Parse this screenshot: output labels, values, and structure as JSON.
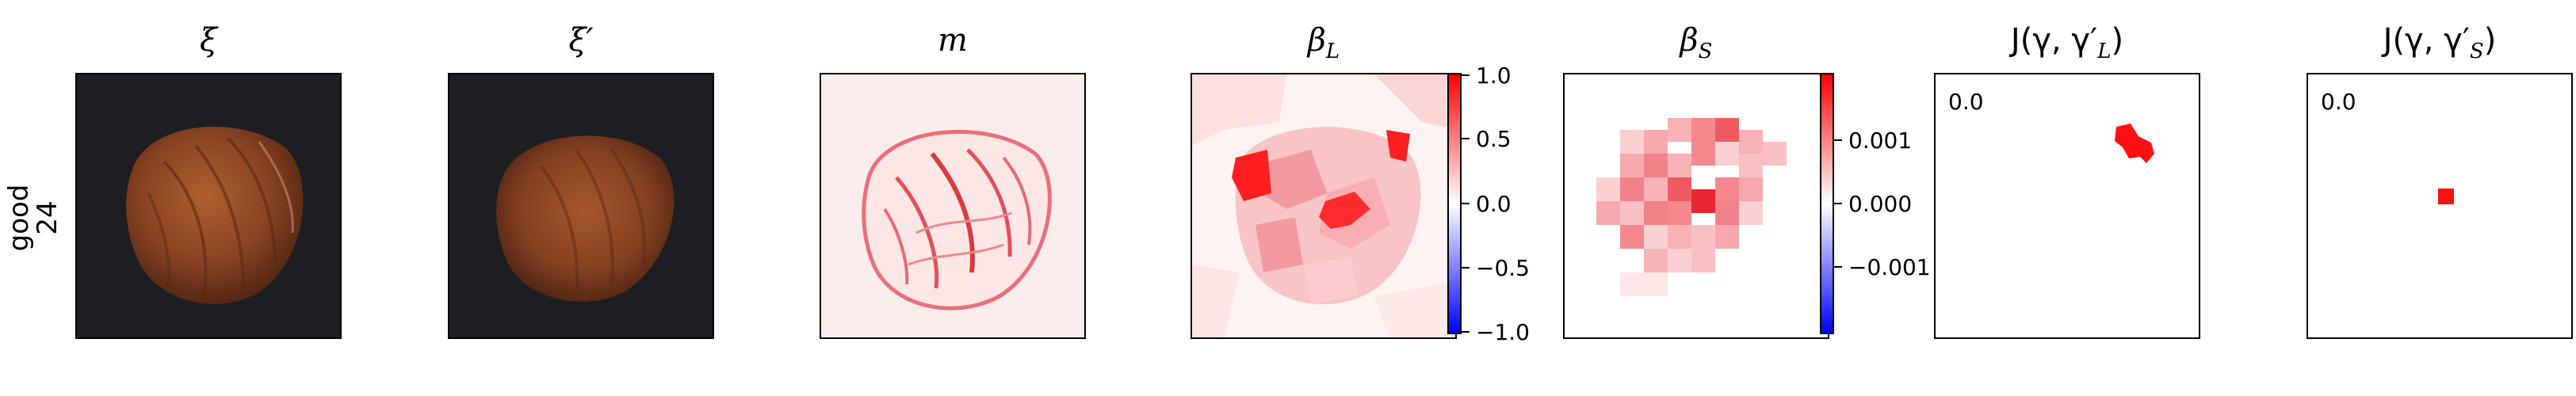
{
  "row_label": {
    "line1": "good",
    "line2": "24"
  },
  "panels": {
    "xi": {
      "title": "ξ"
    },
    "xi_prime": {
      "title": "ξ′"
    },
    "m": {
      "title": "m"
    },
    "beta_L": {
      "title": "β_L",
      "title_main": "β",
      "title_sub": "L",
      "colorbar_ticks": [
        "1.0",
        "0.5",
        "0.0",
        "−0.5",
        "−1.0"
      ]
    },
    "beta_S": {
      "title": "β_S",
      "title_main": "β",
      "title_sub": "S",
      "colorbar_ticks": [
        "0.001",
        "0.000",
        "−0.001"
      ]
    },
    "J_L": {
      "title": "J(γ, γ′_L)",
      "title_prefix": "J(γ, γ′",
      "title_sub": "L",
      "title_suffix": ")",
      "value": "0.0"
    },
    "J_S": {
      "title": "J(γ, γ′_S)",
      "title_prefix": "J(γ, γ′",
      "title_sub": "S",
      "title_suffix": ")",
      "value": "0.0"
    }
  },
  "colors": {
    "accent_red": "#ff0000",
    "dark_bg": "#1c1e22",
    "nut_brown": "#7a3a1e"
  }
}
